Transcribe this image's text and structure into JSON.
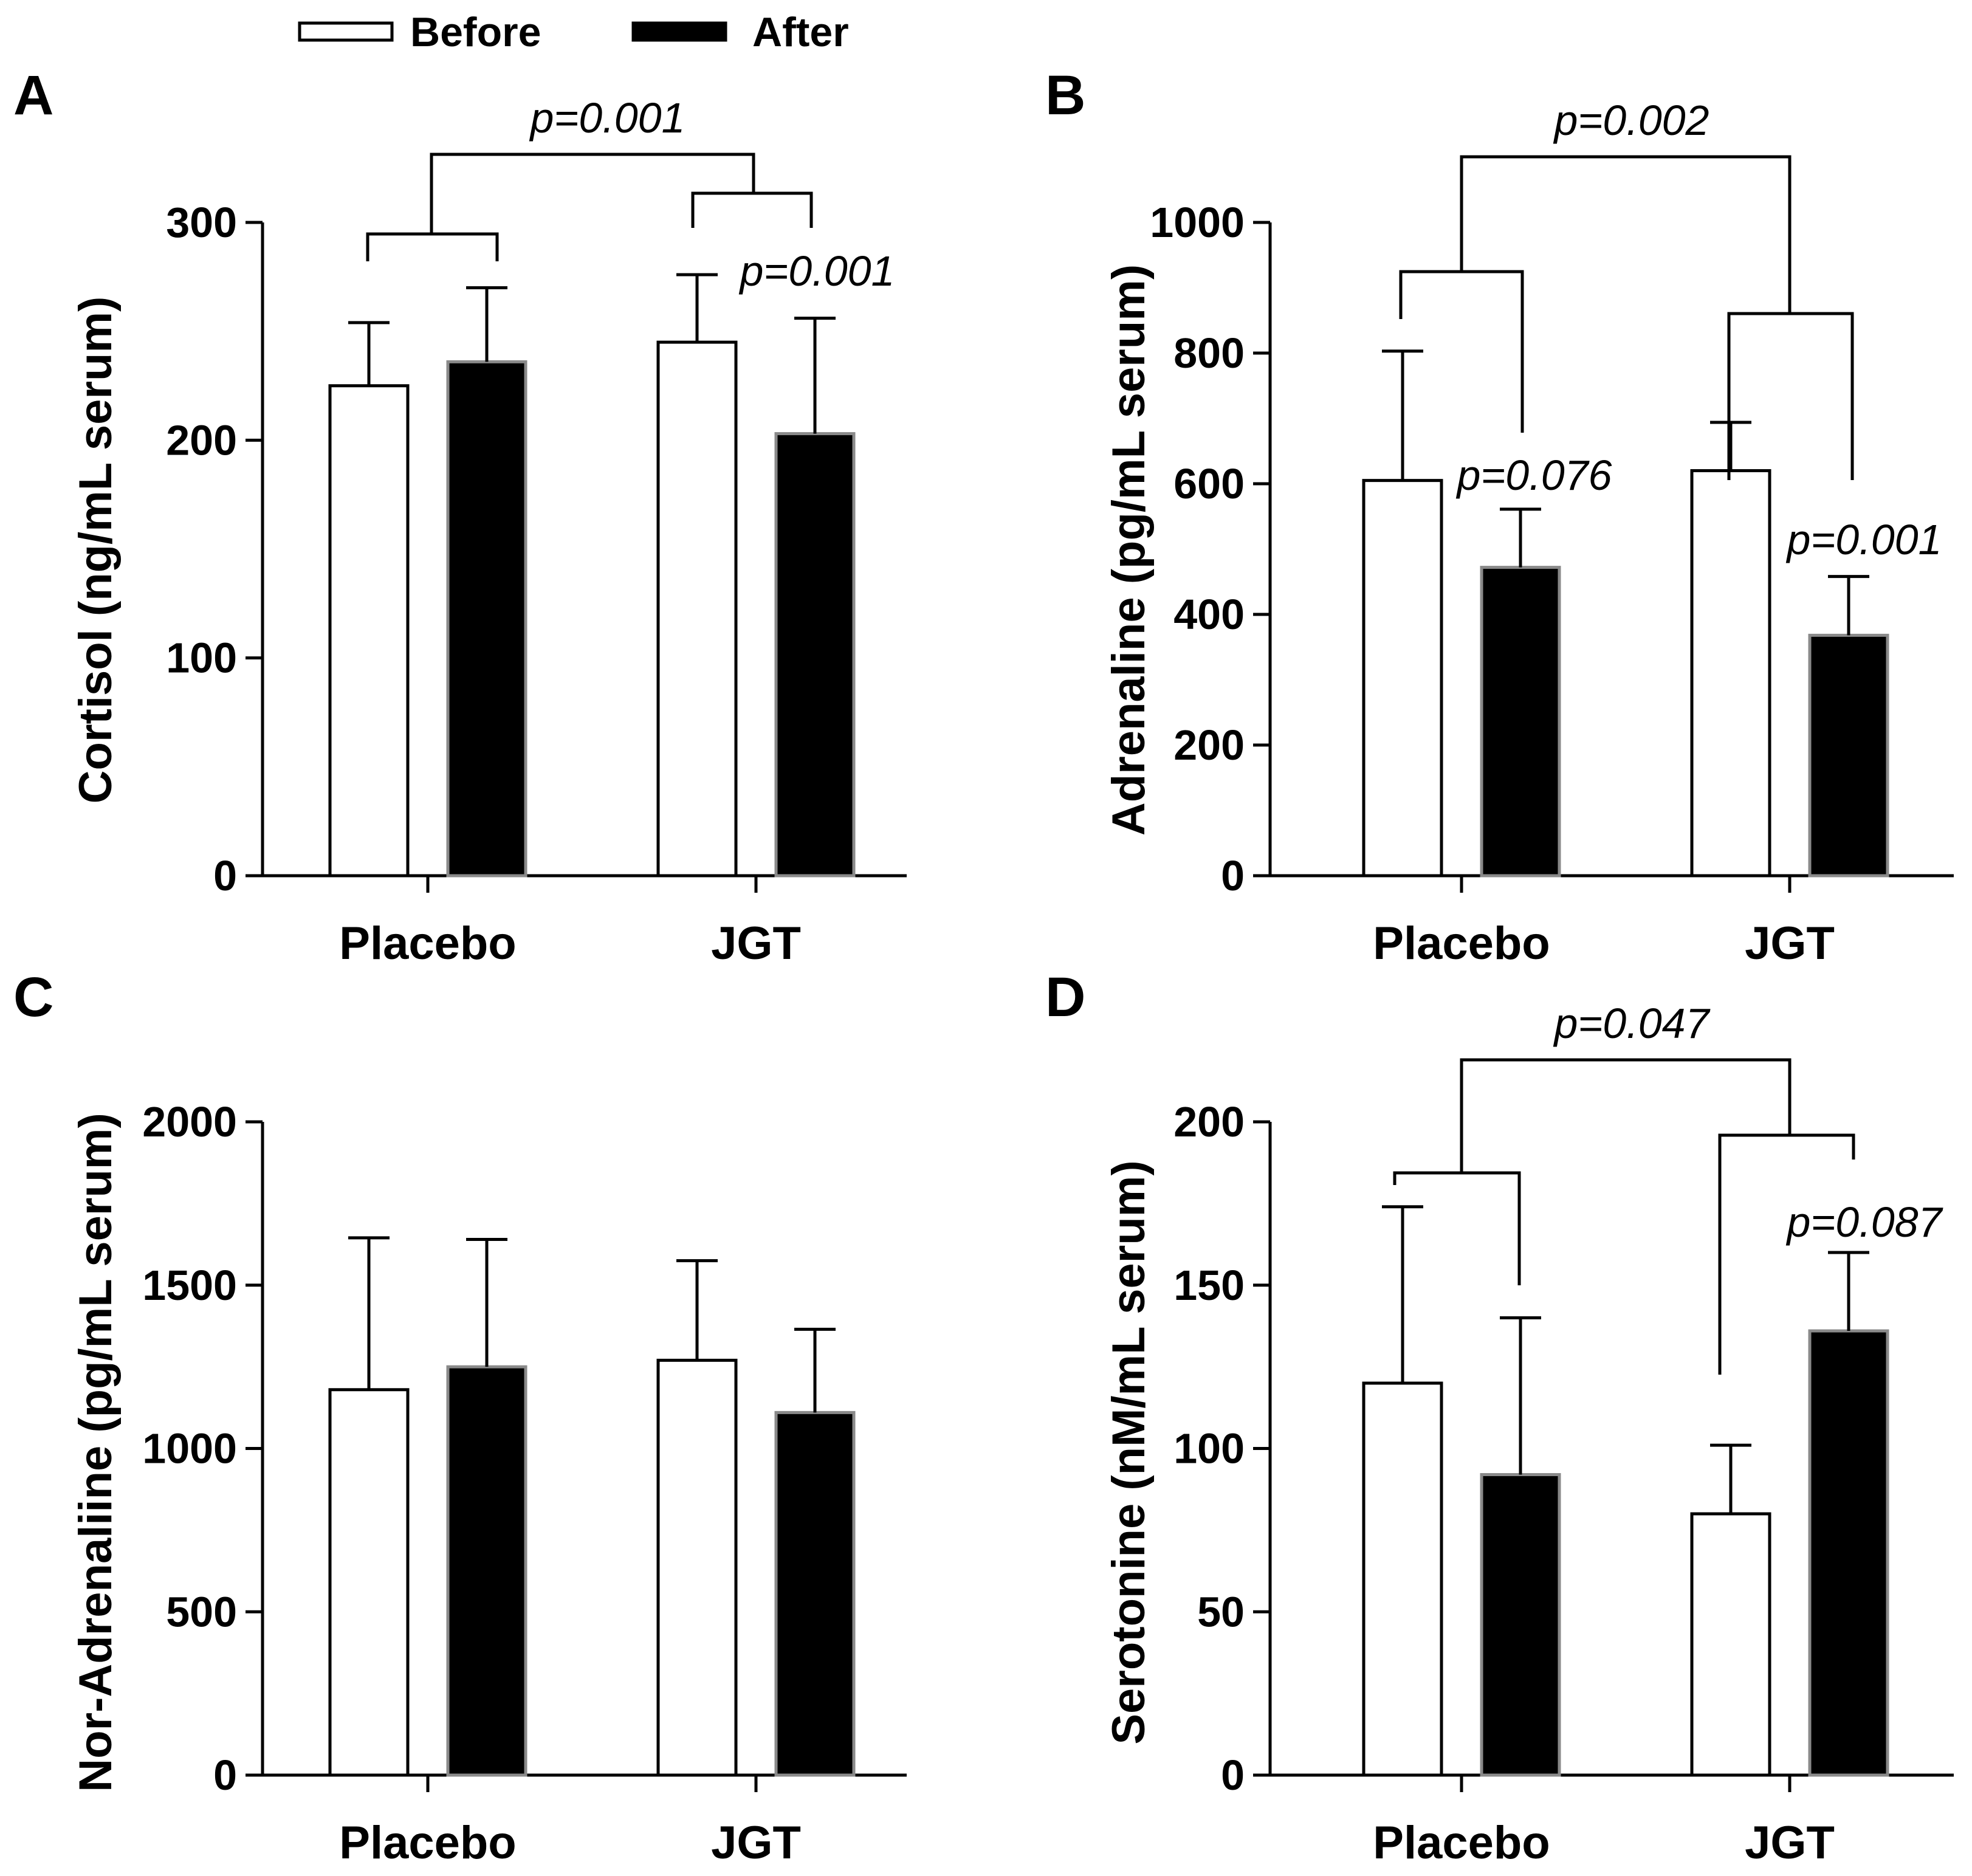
{
  "legend": {
    "before": "Before",
    "after": "After",
    "before_color": "#ffffff",
    "after_color": "#000000"
  },
  "chart_data": [
    {
      "type": "bar",
      "panel": "A",
      "title": "",
      "ylabel": "Cortisol (ng/mL serum)",
      "xlabel": "",
      "categories": [
        "Placebo",
        "JGT"
      ],
      "ylim": [
        0,
        300
      ],
      "yticks": [
        0,
        100,
        200,
        300
      ],
      "series": [
        {
          "name": "Before",
          "values": [
            225,
            245
          ],
          "errors": [
            29,
            31
          ]
        },
        {
          "name": "After",
          "values": [
            236,
            203
          ],
          "errors": [
            34,
            53
          ]
        }
      ],
      "annotations": [
        {
          "text": "p=0.001",
          "between": "Placebo vs JGT change"
        },
        {
          "text": "p=0.001",
          "between": "JGT Before vs After"
        }
      ]
    },
    {
      "type": "bar",
      "panel": "B",
      "title": "",
      "ylabel": "Adrenaline (pg/mL serum)",
      "xlabel": "",
      "categories": [
        "Placebo",
        "JGT"
      ],
      "ylim": [
        0,
        1000
      ],
      "yticks": [
        0,
        200,
        400,
        600,
        800,
        1000
      ],
      "series": [
        {
          "name": "Before",
          "values": [
            605,
            620
          ],
          "errors": [
            198,
            74
          ]
        },
        {
          "name": "After",
          "values": [
            472,
            368
          ],
          "errors": [
            89,
            90
          ]
        }
      ],
      "annotations": [
        {
          "text": "p=0.002",
          "between": "Placebo vs JGT change"
        },
        {
          "text": "p=0.076",
          "between": "Placebo Before vs After"
        },
        {
          "text": "p=0.001",
          "between": "JGT Before vs After"
        }
      ]
    },
    {
      "type": "bar",
      "panel": "C",
      "title": "",
      "ylabel": "Nor-Adrenaliine (pg/mL serum)",
      "xlabel": "",
      "categories": [
        "Placebo",
        "JGT"
      ],
      "ylim": [
        0,
        2000
      ],
      "yticks": [
        0,
        500,
        1000,
        1500,
        2000
      ],
      "series": [
        {
          "name": "Before",
          "values": [
            1180,
            1270
          ],
          "errors": [
            465,
            305
          ]
        },
        {
          "name": "After",
          "values": [
            1250,
            1110
          ],
          "errors": [
            390,
            255
          ]
        }
      ],
      "annotations": []
    },
    {
      "type": "bar",
      "panel": "D",
      "title": "",
      "ylabel": "Serotonine (nM/mL serum)",
      "xlabel": "",
      "categories": [
        "Placebo",
        "JGT"
      ],
      "ylim": [
        0,
        200
      ],
      "yticks": [
        0,
        50,
        100,
        150,
        200
      ],
      "series": [
        {
          "name": "Before",
          "values": [
            120,
            80
          ],
          "errors": [
            54,
            21
          ]
        },
        {
          "name": "After",
          "values": [
            92,
            136
          ],
          "errors": [
            48,
            24
          ]
        }
      ],
      "annotations": [
        {
          "text": "p=0.047",
          "between": "Placebo vs JGT change"
        },
        {
          "text": "p=0.087",
          "between": "JGT Before vs After"
        }
      ]
    }
  ]
}
